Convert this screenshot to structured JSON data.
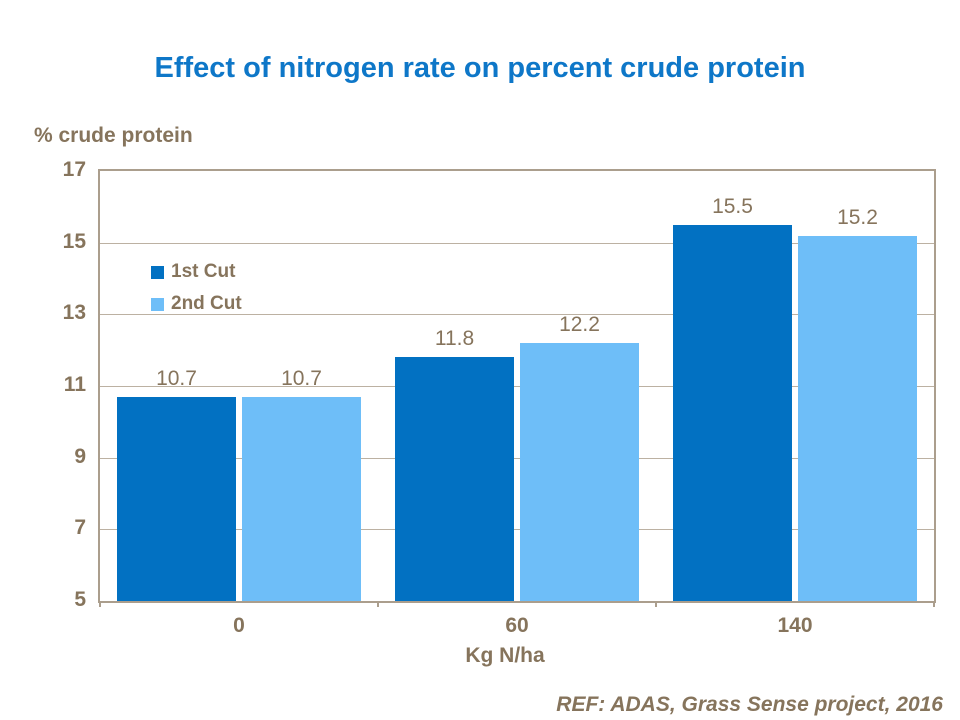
{
  "slide": {
    "title": "Effect of nitrogen rate on percent crude protein",
    "footer_ref": "REF: ADAS, Grass Sense project, 2016"
  },
  "chart_data": {
    "type": "bar",
    "title": "Effect of nitrogen rate on percent crude protein",
    "ylabel": "% crude protein",
    "xlabel": "Kg N/ha",
    "categories": [
      "0",
      "60",
      "140"
    ],
    "series": [
      {
        "name": "1st Cut",
        "color": "#0271c2",
        "values": [
          10.7,
          11.8,
          15.5
        ]
      },
      {
        "name": "2nd Cut",
        "color": "#6ebef8",
        "values": [
          10.7,
          12.2,
          15.2
        ]
      }
    ],
    "value_labels": [
      [
        "10.7",
        "11.8",
        "15.5"
      ],
      [
        "10.7",
        "12.2",
        "15.2"
      ]
    ],
    "ylim": [
      5,
      17
    ],
    "ytick_step": 2,
    "yticks": [
      "17",
      "15",
      "13",
      "11",
      "9",
      "7",
      "5"
    ],
    "grid": true,
    "legend_position": "inside-top-left"
  },
  "colors": {
    "title_blue": "#0e77c8",
    "text_brown": "#86745c",
    "axis_frame": "#ab9e8d",
    "gridline": "#bcb1a2",
    "series_1st_cut": "#0271c2",
    "series_2nd_cut": "#6ebef8",
    "background": "#ffffff"
  }
}
